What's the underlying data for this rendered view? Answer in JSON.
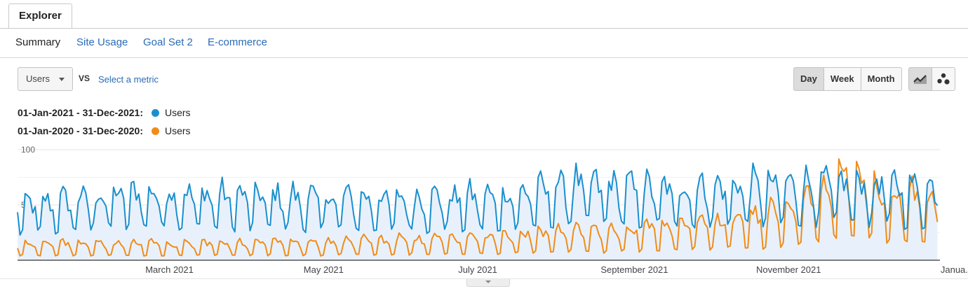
{
  "tab": {
    "label": "Explorer"
  },
  "subnav": {
    "active": "Summary",
    "links": [
      "Site Usage",
      "Goal Set 2",
      "E-commerce"
    ]
  },
  "controls": {
    "metric": "Users",
    "vs": "VS",
    "select_metric": "Select a metric",
    "periods": [
      "Day",
      "Week",
      "Month"
    ],
    "active_period": "Day"
  },
  "legend": [
    {
      "range": "01-Jan-2021 - 31-Dec-2021:",
      "name": "Users",
      "color": "#1a8fce"
    },
    {
      "range": "01-Jan-2020 - 31-Dec-2020:",
      "name": "Users",
      "color": "#f08c1a"
    }
  ],
  "chart_data": {
    "type": "line",
    "title": "",
    "xlabel": "",
    "ylabel": "",
    "ylim": [
      0,
      100
    ],
    "y_ticks": [
      100,
      50
    ],
    "x_tick_labels": [
      "March 2021",
      "May 2021",
      "July 2021",
      "September 2021",
      "November 2021",
      "Janua..."
    ],
    "grid": true,
    "legend_position": "top-left",
    "x_start": "2021-01-01",
    "x_end": "2022-01-01",
    "series": [
      {
        "name": "Users",
        "period": "01-Jan-2021 - 31-Dec-2021",
        "color": "#1a8fce",
        "filled": true,
        "daily_pattern": [
          1.2,
          1.28,
          1.22,
          1.12,
          0.98,
          0.58,
          0.62
        ],
        "monthly_level": [
          {
            "date": "2021-01-01",
            "value": 42
          },
          {
            "date": "2021-02-15",
            "value": 52
          },
          {
            "date": "2021-04-01",
            "value": 50
          },
          {
            "date": "2021-06-01",
            "value": 48
          },
          {
            "date": "2021-07-15",
            "value": 50
          },
          {
            "date": "2021-08-10",
            "value": 60
          },
          {
            "date": "2021-09-15",
            "value": 55
          },
          {
            "date": "2021-10-15",
            "value": 58
          },
          {
            "date": "2021-11-15",
            "value": 60
          },
          {
            "date": "2021-12-15",
            "value": 58
          },
          {
            "date": "2021-12-31",
            "value": 55
          }
        ]
      },
      {
        "name": "Users",
        "period": "01-Jan-2020 - 31-Dec-2020",
        "color": "#f08c1a",
        "filled": false,
        "daily_pattern": [
          1.35,
          1.45,
          1.3,
          1.2,
          1.0,
          0.35,
          0.4
        ],
        "monthly_level": [
          {
            "date": "2021-01-01",
            "value": 12
          },
          {
            "date": "2021-04-01",
            "value": 12
          },
          {
            "date": "2021-06-15",
            "value": 15
          },
          {
            "date": "2021-08-01",
            "value": 20
          },
          {
            "date": "2021-09-15",
            "value": 25
          },
          {
            "date": "2021-10-15",
            "value": 30
          },
          {
            "date": "2021-11-10",
            "value": 45
          },
          {
            "date": "2021-11-25",
            "value": 62
          },
          {
            "date": "2021-12-10",
            "value": 50
          },
          {
            "date": "2021-12-31",
            "value": 40
          }
        ]
      }
    ]
  }
}
